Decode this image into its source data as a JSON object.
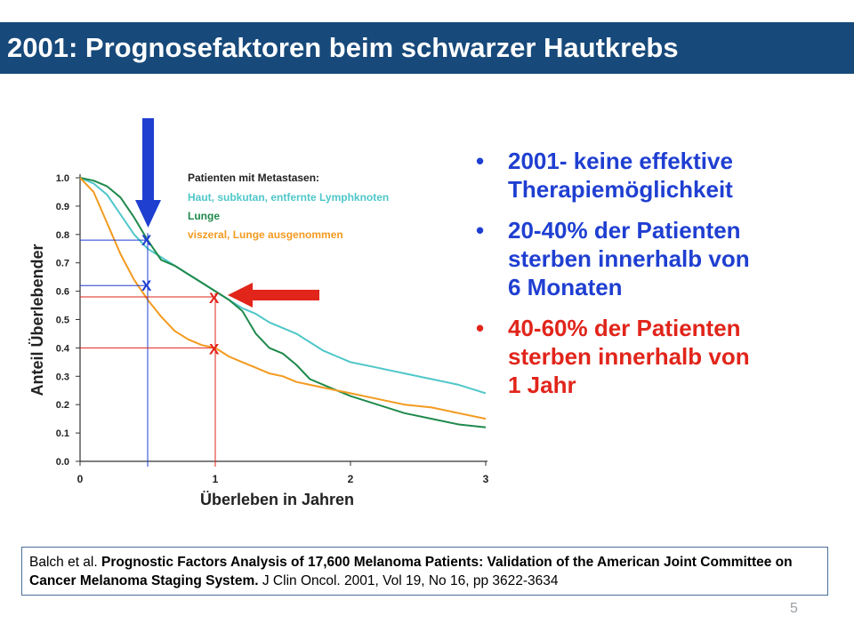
{
  "slide": {
    "title": "2001: Prognosefaktoren beim schwarzer Hautkrebs",
    "page_number": "5",
    "colors": {
      "title_bar": "#17497a",
      "blue_text": "#1f3fd1",
      "red_text": "#e1251b"
    }
  },
  "bullets": [
    {
      "symbol": "•",
      "text": "2001- keine effektive\nTherapiemöglichkeit",
      "color": "#1f3fd1"
    },
    {
      "symbol": "•",
      "text": "20-40% der Patienten\nsterben innerhalb von\n6 Monaten",
      "color": "#1f3fd1"
    },
    {
      "symbol": "•",
      "text": "40-60% der Patienten\nsterben innerhalb von\n1 Jahr",
      "color": "#e1251b"
    }
  ],
  "citation": {
    "authors": "Balch et al.",
    "title": "Prognostic Factors Analysis of 17,600 Melanoma Patients: Validation of the American Joint Committee on Cancer Melanoma Staging System.",
    "journal": "J Clin Oncol. 2001, Vol 19, No 16, pp 3622-3634"
  },
  "chart_data": {
    "type": "line",
    "xlabel": "Überleben in Jahren",
    "ylabel": "Anteil Überlebender",
    "xlim": [
      0,
      3
    ],
    "ylim": [
      0,
      1
    ],
    "xticks": [
      "0",
      "1",
      "2",
      "3"
    ],
    "yticks": [
      "0.0",
      "0.1",
      "0.2",
      "0.3",
      "0.4",
      "0.5",
      "0.6",
      "0.7",
      "0.8",
      "0.9",
      "1.0"
    ],
    "grid": false,
    "legend_title": "Patienten mit Metastasen:",
    "legend_position": "top-right",
    "series": [
      {
        "name": "Haut, subkutan, entfernte Lymphknoten",
        "color": "#4fc7c9",
        "x": [
          0,
          0.1,
          0.2,
          0.3,
          0.4,
          0.5,
          0.6,
          0.7,
          0.8,
          0.9,
          1.0,
          1.1,
          1.2,
          1.3,
          1.4,
          1.5,
          1.6,
          1.7,
          1.8,
          1.9,
          2.0,
          2.2,
          2.4,
          2.6,
          2.8,
          3.0
        ],
        "y": [
          1.0,
          0.98,
          0.94,
          0.87,
          0.8,
          0.75,
          0.72,
          0.69,
          0.66,
          0.63,
          0.6,
          0.57,
          0.54,
          0.52,
          0.49,
          0.47,
          0.45,
          0.42,
          0.39,
          0.37,
          0.35,
          0.33,
          0.31,
          0.29,
          0.27,
          0.24
        ]
      },
      {
        "name": "Lunge",
        "color": "#1f8a4c",
        "x": [
          0,
          0.1,
          0.2,
          0.3,
          0.4,
          0.5,
          0.6,
          0.7,
          0.8,
          0.9,
          1.0,
          1.1,
          1.2,
          1.3,
          1.4,
          1.5,
          1.6,
          1.7,
          1.8,
          1.9,
          2.0,
          2.2,
          2.4,
          2.6,
          2.8,
          3.0
        ],
        "y": [
          1.0,
          0.99,
          0.97,
          0.93,
          0.86,
          0.78,
          0.71,
          0.69,
          0.66,
          0.63,
          0.6,
          0.57,
          0.53,
          0.45,
          0.4,
          0.38,
          0.34,
          0.29,
          0.27,
          0.25,
          0.23,
          0.2,
          0.17,
          0.15,
          0.13,
          0.12
        ]
      },
      {
        "name": "viszeral, Lunge ausgenommen",
        "color": "#f39a1f",
        "x": [
          0,
          0.1,
          0.2,
          0.3,
          0.4,
          0.5,
          0.6,
          0.7,
          0.8,
          0.9,
          1.0,
          1.1,
          1.2,
          1.3,
          1.4,
          1.5,
          1.6,
          1.7,
          1.8,
          1.9,
          2.0,
          2.2,
          2.4,
          2.6,
          2.8,
          3.0
        ],
        "y": [
          1.0,
          0.95,
          0.84,
          0.73,
          0.64,
          0.57,
          0.51,
          0.46,
          0.43,
          0.41,
          0.4,
          0.37,
          0.35,
          0.33,
          0.31,
          0.3,
          0.28,
          0.27,
          0.26,
          0.25,
          0.24,
          0.22,
          0.2,
          0.19,
          0.17,
          0.15
        ]
      }
    ],
    "annotations": {
      "marker_label": "X",
      "blue_color": "#1f3fd1",
      "red_color": "#e1251b",
      "blue_vertical_x": 0.5,
      "blue_levels": [
        0.78,
        0.62
      ],
      "red_vertical_x": 1.0,
      "red_levels": [
        0.58,
        0.4
      ]
    }
  }
}
